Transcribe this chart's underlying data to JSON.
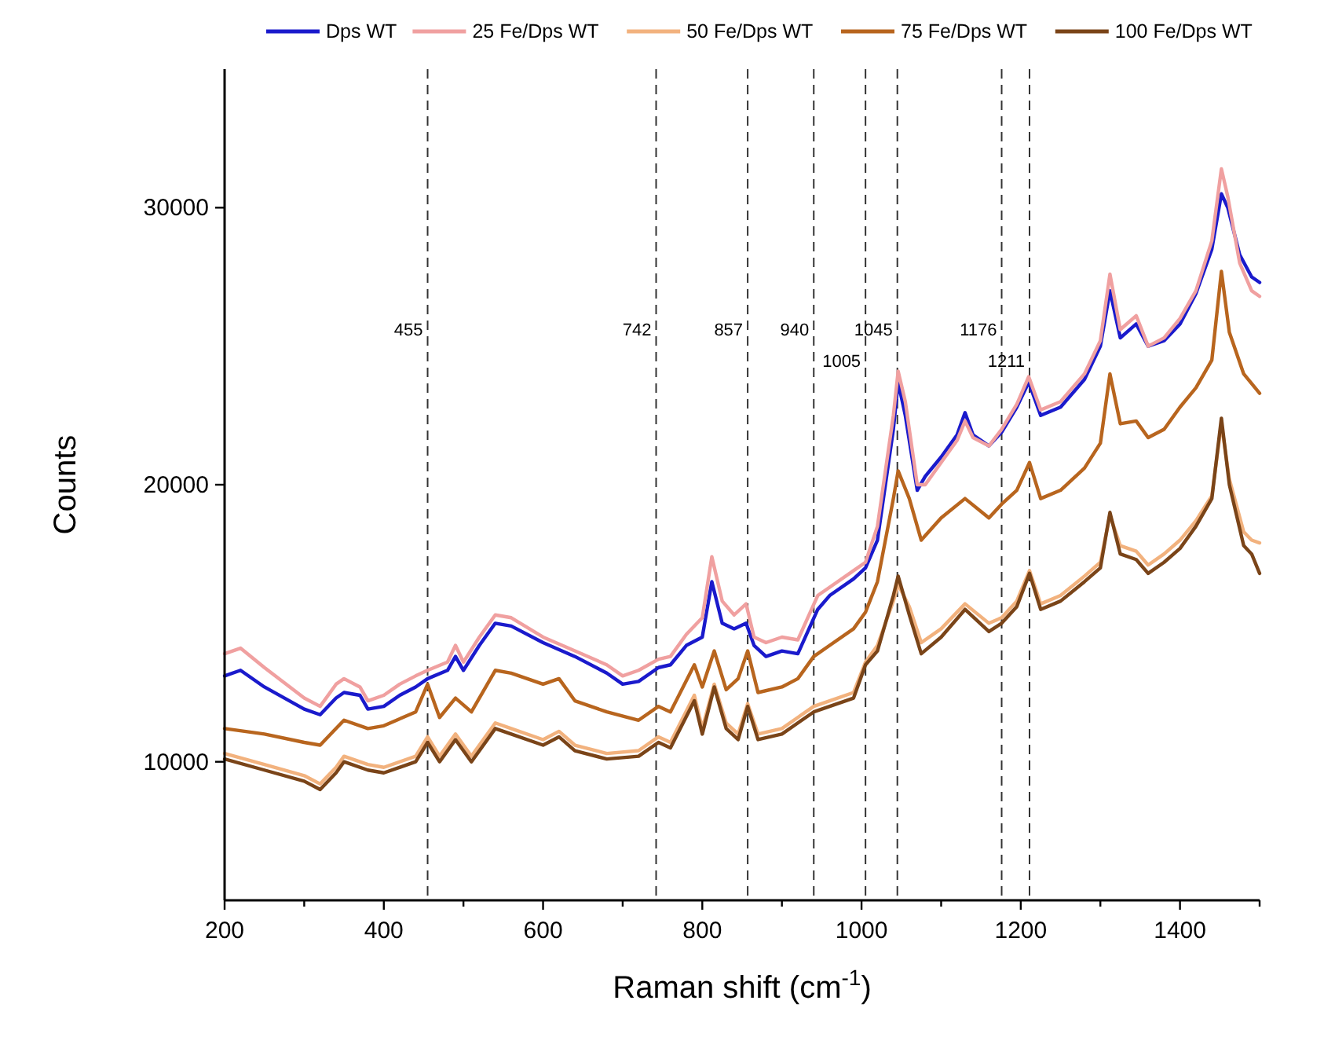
{
  "chart_data": {
    "type": "line",
    "xlabel": "Raman shift (cm$^{-1}$)",
    "ylabel": "Counts",
    "xlim": [
      200,
      1500
    ],
    "ylim": [
      5000,
      35000
    ],
    "xticks": [
      200,
      {
        "value": 300,
        "label": null
      },
      400,
      {
        "value": 500,
        "label": null
      },
      600,
      {
        "value": 700,
        "label": null
      },
      800,
      {
        "value": 900,
        "label": null
      },
      1000,
      {
        "value": 1100,
        "label": null
      },
      1200,
      {
        "value": 1300,
        "label": null
      },
      1400,
      {
        "value": 1500,
        "label": null
      }
    ],
    "yticks": [
      10000,
      20000,
      30000
    ],
    "grid": false,
    "legend": "top",
    "line_style": "solid",
    "marker": "none",
    "ref_lines": [
      {
        "axis": "x",
        "value": 455,
        "label": "455",
        "color": "#333333",
        "line_style": "dashed"
      },
      {
        "axis": "x",
        "value": 742,
        "label": "742",
        "color": "#333333",
        "line_style": "dashed"
      },
      {
        "axis": "x",
        "value": 857,
        "label": "857",
        "color": "#333333",
        "line_style": "dashed"
      },
      {
        "axis": "x",
        "value": 940,
        "label": "940",
        "color": "#333333",
        "line_style": "dashed"
      },
      {
        "axis": "x",
        "value": 1005,
        "label": "1005",
        "color": "#333333",
        "line_style": "dashed"
      },
      {
        "axis": "x",
        "value": 1045,
        "label": "1045",
        "color": "#333333",
        "line_style": "dashed"
      },
      {
        "axis": "x",
        "value": 1176,
        "label": "1176",
        "color": "#333333",
        "line_style": "dashed"
      },
      {
        "axis": "x",
        "value": 1211,
        "label": "1211",
        "color": "#333333",
        "line_style": "dashed"
      }
    ],
    "x": [
      200,
      220,
      250,
      300,
      320,
      340,
      350,
      370,
      380,
      400,
      420,
      440,
      455,
      480,
      490,
      500,
      520,
      540,
      560,
      600,
      640,
      680,
      700,
      720,
      745,
      760,
      780,
      800,
      812,
      825,
      840,
      855,
      865,
      880,
      900,
      920,
      945,
      960,
      990,
      1005,
      1020,
      1040,
      1046,
      1055,
      1070,
      1080,
      1100,
      1120,
      1130,
      1140,
      1160,
      1176,
      1195,
      1210,
      1225,
      1250,
      1280,
      1300,
      1312,
      1325,
      1345,
      1360,
      1380,
      1400,
      1420,
      1440,
      1452,
      1460,
      1475,
      1490,
      1500
    ],
    "series": [
      {
        "name": "Dps WT",
        "color": "#1a1acc",
        "values": [
          13100,
          13300,
          12700,
          11900,
          11700,
          12300,
          12500,
          12400,
          11900,
          12000,
          12400,
          12700,
          13000,
          13300,
          13800,
          13300,
          14200,
          15000,
          14900,
          14300,
          13800,
          13200,
          12800,
          12900,
          13400,
          13500,
          14200,
          14500,
          16500,
          15000,
          14800,
          15000,
          14200,
          13800,
          14000,
          13900,
          15500,
          16000,
          16600,
          17000,
          18000,
          22000,
          23700,
          22500,
          19800,
          20300,
          21000,
          21800,
          22600,
          21800,
          21400,
          21900,
          22800,
          23700,
          22500,
          22800,
          23800,
          25000,
          27000,
          25300,
          25800,
          25000,
          25200,
          25800,
          26900,
          28500,
          30500,
          30000,
          28300,
          27500,
          27300
        ]
      },
      {
        "name": "25 Fe/Dps WT",
        "color": "#f0a0a0",
        "values": [
          13900,
          14100,
          13400,
          12300,
          12000,
          12800,
          13000,
          12700,
          12200,
          12400,
          12800,
          13100,
          13300,
          13600,
          14200,
          13600,
          14500,
          15300,
          15200,
          14500,
          14000,
          13500,
          13100,
          13300,
          13700,
          13800,
          14600,
          15200,
          17400,
          15800,
          15300,
          15700,
          14500,
          14300,
          14500,
          14400,
          16000,
          16300,
          16900,
          17200,
          18500,
          22500,
          24100,
          23000,
          20000,
          20000,
          20800,
          21600,
          22300,
          21700,
          21400,
          22000,
          22900,
          23900,
          22700,
          23000,
          24000,
          25200,
          27600,
          25600,
          26100,
          25000,
          25300,
          26000,
          27000,
          28800,
          31400,
          30400,
          28000,
          27000,
          26800
        ]
      },
      {
        "name": "50 Fe/Dps WT",
        "color": "#f2b27e",
        "x": [
          200,
          250,
          300,
          320,
          340,
          350,
          380,
          400,
          440,
          455,
          470,
          490,
          510,
          540,
          560,
          600,
          620,
          640,
          680,
          720,
          745,
          760,
          790,
          800,
          815,
          830,
          845,
          857,
          870,
          900,
          920,
          940,
          960,
          990,
          1005,
          1020,
          1040,
          1046,
          1060,
          1075,
          1100,
          1130,
          1160,
          1176,
          1195,
          1211,
          1225,
          1250,
          1280,
          1300,
          1312,
          1325,
          1345,
          1360,
          1380,
          1400,
          1420,
          1440,
          1452,
          1462,
          1480,
          1490,
          1500
        ],
        "values": [
          10300,
          9900,
          9500,
          9200,
          9800,
          10200,
          9900,
          9800,
          10200,
          10900,
          10200,
          11000,
          10200,
          11400,
          11200,
          10800,
          11100,
          10600,
          10300,
          10400,
          10900,
          10700,
          12400,
          11200,
          12800,
          11400,
          11000,
          12100,
          11000,
          11200,
          11600,
          12000,
          12200,
          12500,
          13600,
          14200,
          15800,
          16400,
          15600,
          14300,
          14800,
          15700,
          15000,
          15200,
          15800,
          16900,
          15700,
          16000,
          16700,
          17200,
          18900,
          17800,
          17600,
          17100,
          17500,
          18000,
          18700,
          19600,
          22200,
          20200,
          18300,
          18000,
          17900
        ]
      },
      {
        "name": "75 Fe/Dps WT",
        "color": "#b8651e",
        "x": [
          200,
          250,
          300,
          320,
          340,
          350,
          380,
          400,
          440,
          455,
          470,
          490,
          510,
          540,
          560,
          600,
          620,
          640,
          680,
          720,
          745,
          760,
          790,
          800,
          815,
          830,
          845,
          857,
          870,
          900,
          920,
          940,
          960,
          990,
          1005,
          1020,
          1040,
          1046,
          1060,
          1075,
          1100,
          1130,
          1160,
          1176,
          1195,
          1211,
          1225,
          1250,
          1280,
          1300,
          1312,
          1325,
          1345,
          1360,
          1380,
          1400,
          1420,
          1440,
          1452,
          1462,
          1480,
          1500
        ],
        "values": [
          11200,
          11000,
          10700,
          10600,
          11200,
          11500,
          11200,
          11300,
          11800,
          12800,
          11600,
          12300,
          11800,
          13300,
          13200,
          12800,
          13000,
          12200,
          11800,
          11500,
          12000,
          11800,
          13500,
          12700,
          14000,
          12600,
          13000,
          14000,
          12500,
          12700,
          13000,
          13800,
          14200,
          14800,
          15400,
          16500,
          19500,
          20500,
          19500,
          18000,
          18800,
          19500,
          18800,
          19300,
          19800,
          20800,
          19500,
          19800,
          20600,
          21500,
          24000,
          22200,
          22300,
          21700,
          22000,
          22800,
          23500,
          24500,
          27700,
          25500,
          24000,
          23300
        ]
      },
      {
        "name": "100 Fe/Dps WT",
        "color": "#7a4418",
        "x": [
          200,
          250,
          300,
          320,
          340,
          350,
          380,
          400,
          440,
          455,
          470,
          490,
          510,
          540,
          560,
          600,
          620,
          640,
          680,
          720,
          745,
          760,
          790,
          800,
          815,
          830,
          845,
          857,
          870,
          900,
          920,
          940,
          960,
          990,
          1005,
          1020,
          1040,
          1046,
          1060,
          1075,
          1100,
          1130,
          1160,
          1176,
          1195,
          1211,
          1225,
          1250,
          1280,
          1300,
          1312,
          1325,
          1345,
          1360,
          1380,
          1400,
          1420,
          1440,
          1452,
          1462,
          1480,
          1490,
          1500
        ],
        "values": [
          10100,
          9700,
          9300,
          9000,
          9600,
          10000,
          9700,
          9600,
          10000,
          10700,
          10000,
          10800,
          10000,
          11200,
          11000,
          10600,
          10900,
          10400,
          10100,
          10200,
          10700,
          10500,
          12200,
          11000,
          12700,
          11200,
          10800,
          12000,
          10800,
          11000,
          11400,
          11800,
          12000,
          12300,
          13500,
          14000,
          16000,
          16700,
          15300,
          13900,
          14500,
          15500,
          14700,
          15000,
          15600,
          16800,
          15500,
          15800,
          16500,
          17000,
          19000,
          17500,
          17300,
          16800,
          17200,
          17700,
          18500,
          19500,
          22400,
          20000,
          17800,
          17500,
          16800
        ]
      }
    ]
  }
}
